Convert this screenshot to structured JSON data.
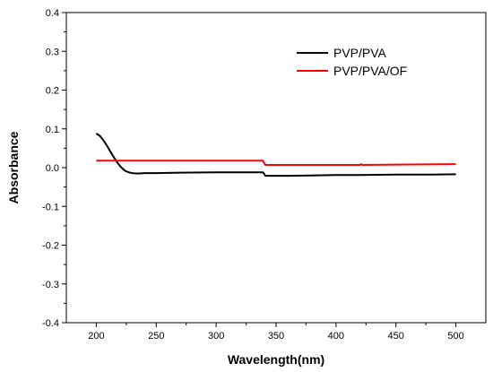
{
  "chart_data": {
    "type": "line",
    "title": "",
    "xlabel": "Wavelength(nm)",
    "ylabel": "Absorbance",
    "xlim": [
      175,
      525
    ],
    "ylim": [
      -0.4,
      0.4
    ],
    "xticks": [
      200,
      250,
      300,
      350,
      400,
      450,
      500
    ],
    "yticks": [
      -0.4,
      -0.3,
      -0.2,
      -0.1,
      0.0,
      0.1,
      0.2,
      0.3,
      0.4
    ],
    "xtick_labels": [
      "200",
      "250",
      "300",
      "350",
      "400",
      "450",
      "500"
    ],
    "ytick_labels": [
      "-0.4",
      "-0.3",
      "-0.2",
      "-0.1",
      "0.0",
      "0.1",
      "0.2",
      "0.3",
      "0.4"
    ],
    "grid": false,
    "legend_position": "top-right",
    "series": [
      {
        "name": "PVP/PVA",
        "color": "#000000",
        "x": [
          200,
          203,
          206,
          209,
          212,
          215,
          218,
          221,
          224,
          227,
          230,
          233,
          236,
          240,
          250,
          270,
          300,
          320,
          339,
          340,
          341,
          360,
          380,
          400,
          420,
          450,
          480,
          500
        ],
        "y": [
          0.088,
          0.082,
          0.07,
          0.056,
          0.04,
          0.025,
          0.011,
          0.0,
          -0.008,
          -0.012,
          -0.014,
          -0.015,
          -0.015,
          -0.014,
          -0.014,
          -0.013,
          -0.012,
          -0.012,
          -0.012,
          -0.016,
          -0.021,
          -0.021,
          -0.02,
          -0.019,
          -0.019,
          -0.018,
          -0.018,
          -0.017
        ]
      },
      {
        "name": "PVP/PVA/OF",
        "color": "#ff0000",
        "x": [
          200,
          220,
          250,
          300,
          339,
          340,
          341,
          380,
          420,
          421,
          422,
          460,
          500
        ],
        "y": [
          0.018,
          0.018,
          0.018,
          0.018,
          0.018,
          0.012,
          0.007,
          0.007,
          0.007,
          0.009,
          0.007,
          0.008,
          0.009
        ]
      }
    ]
  }
}
